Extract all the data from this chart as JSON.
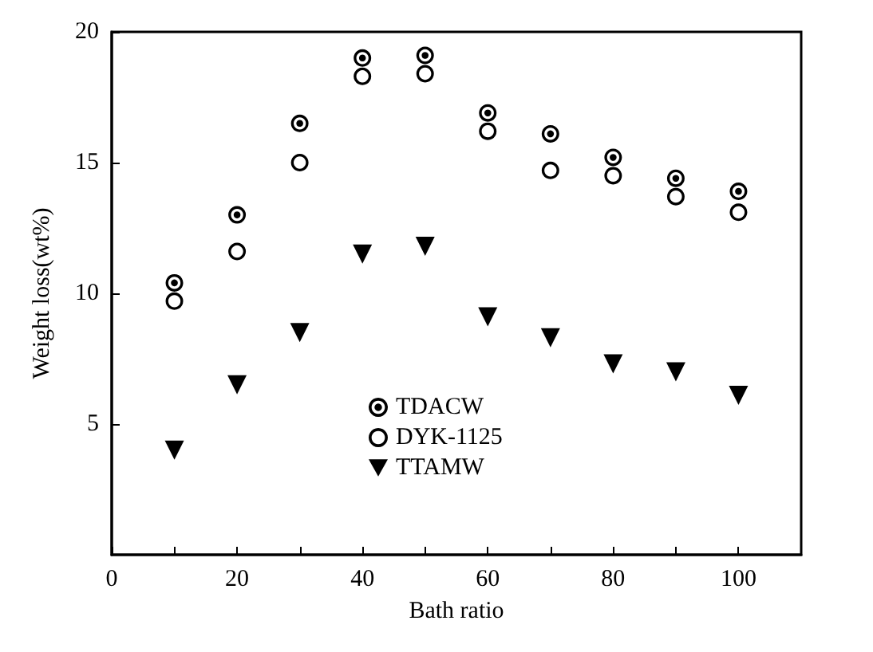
{
  "chart_data": {
    "type": "scatter",
    "xlabel": "Bath ratio",
    "ylabel": "Weight loss(wt%)",
    "x": [
      10,
      20,
      30,
      40,
      50,
      60,
      70,
      80,
      90,
      100
    ],
    "series": [
      {
        "name": "TDACW",
        "color": "#000000",
        "marker": "circle",
        "values": [
          10.4,
          13.0,
          16.5,
          19.0,
          19.1,
          16.9,
          16.1,
          15.2,
          14.4,
          13.9
        ]
      },
      {
        "name": "DYK-1125",
        "color": "#000000",
        "marker": "circle",
        "values": [
          9.7,
          11.6,
          15.0,
          18.3,
          18.4,
          16.2,
          14.7,
          14.5,
          13.7,
          13.1
        ]
      },
      {
        "name": "TTAMW",
        "color": "#000000",
        "marker": "triangle",
        "values": [
          4.0,
          6.5,
          8.5,
          11.5,
          11.8,
          9.1,
          8.3,
          7.3,
          7.0,
          6.1
        ]
      }
    ],
    "xlim": [
      0,
      110
    ],
    "xticks": [
      0,
      {
        "value": 10,
        "label": null
      },
      20,
      {
        "value": 30,
        "label": null
      },
      40,
      {
        "value": 50,
        "label": null
      },
      60,
      {
        "value": 70,
        "label": null
      },
      80,
      {
        "value": 90,
        "label": null
      },
      100
    ],
    "ylim": [
      0,
      20
    ],
    "yticks": [
      5,
      10,
      15,
      20
    ],
    "grid": false,
    "legend": "bottom"
  }
}
